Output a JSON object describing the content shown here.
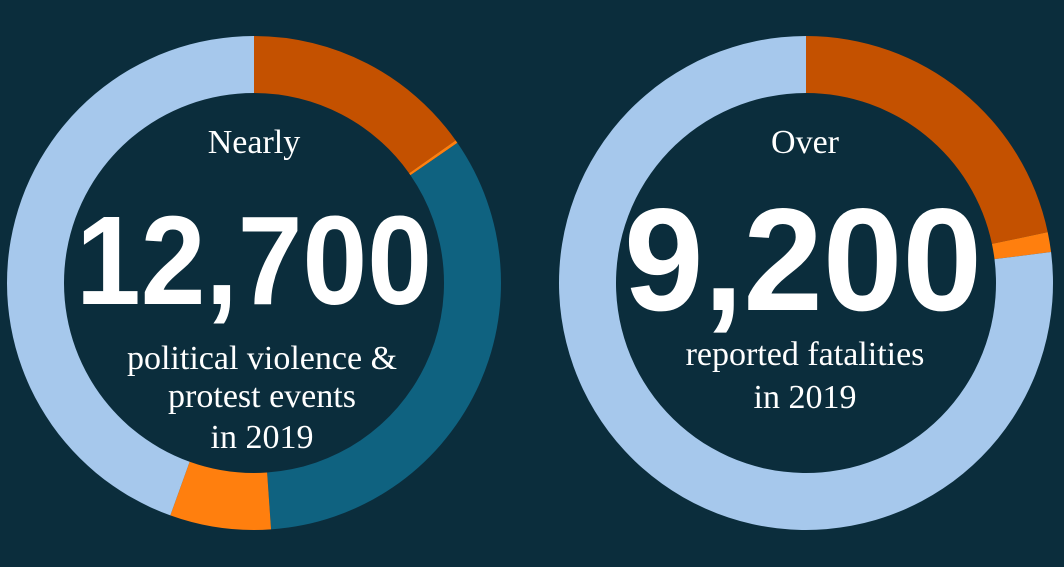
{
  "colors": {
    "background": "#0b2d3c",
    "dark_orange": "#c45100",
    "orange": "#ff7f0e",
    "teal": "#0f6280",
    "light_blue": "#a6c8ec"
  },
  "chart_data": [
    {
      "type": "pie",
      "style": "donut",
      "prefix": "Nearly",
      "headline": "12,700",
      "caption_lines": [
        "political violence &",
        "protest events",
        "in 2019"
      ],
      "slices": [
        {
          "share": 0.152,
          "color": "#c45100"
        },
        {
          "share": 0.002,
          "color": "#ff7f0e"
        },
        {
          "share": 0.335,
          "color": "#0f6280"
        },
        {
          "share": 0.066,
          "color": "#ff7f0e"
        },
        {
          "share": 0.445,
          "color": "#a6c8ec"
        }
      ]
    },
    {
      "type": "pie",
      "style": "donut",
      "prefix": "Over",
      "headline": "9,200",
      "caption_lines": [
        "reported fatalities",
        "in 2019"
      ],
      "slices": [
        {
          "share": 0.217,
          "color": "#c45100"
        },
        {
          "share": 0.013,
          "color": "#ff7f0e"
        },
        {
          "share": 0.77,
          "color": "#a6c8ec"
        }
      ]
    }
  ]
}
